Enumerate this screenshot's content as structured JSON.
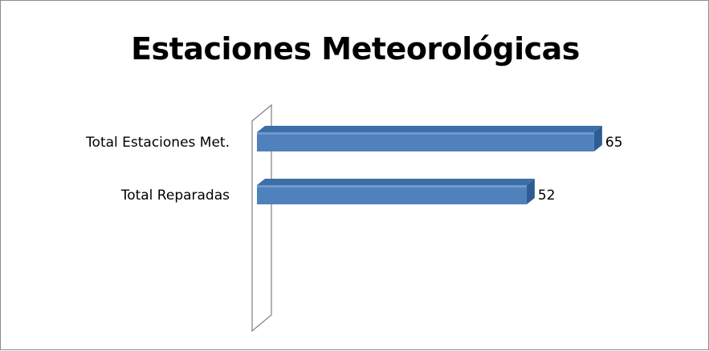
{
  "chart_data": {
    "type": "bar",
    "orientation": "horizontal",
    "title": "Estaciones Meteorológicas",
    "categories": [
      "Total Estaciones Met.",
      "Total Reparadas"
    ],
    "values": [
      65,
      52
    ],
    "data_labels": [
      "65",
      "52"
    ],
    "legend": "none",
    "grid": false,
    "style": "3d",
    "bar_color": "#4f81bd"
  }
}
